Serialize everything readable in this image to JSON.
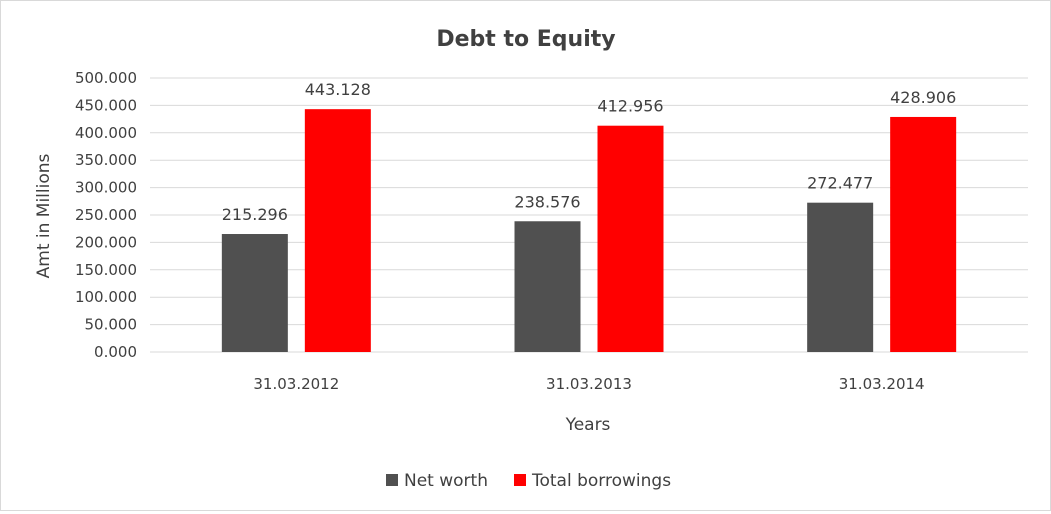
{
  "chart_data": {
    "type": "bar",
    "title": "Debt to Equity",
    "xlabel": "Years",
    "ylabel": "Amt in Millions",
    "categories": [
      "31.03.2012",
      "31.03.2013",
      "31.03.2014"
    ],
    "series": [
      {
        "name": "Net worth",
        "values": [
          215.296,
          238.576,
          272.477
        ],
        "color": "#505050"
      },
      {
        "name": "Total borrowings",
        "values": [
          443.128,
          412.956,
          428.906
        ],
        "color": "#ff0000"
      }
    ],
    "ylim": [
      0,
      500
    ],
    "yticks": [
      "0.000",
      "50.000",
      "100.000",
      "150.000",
      "200.000",
      "250.000",
      "300.000",
      "350.000",
      "400.000",
      "450.000",
      "500.000"
    ],
    "data_labels": [
      [
        "215.296",
        "238.576",
        "272.477"
      ],
      [
        "443.128",
        "412.956",
        "428.906"
      ]
    ],
    "grid": true,
    "legend_position": "bottom",
    "gridline_color": "#d9d9d9"
  }
}
